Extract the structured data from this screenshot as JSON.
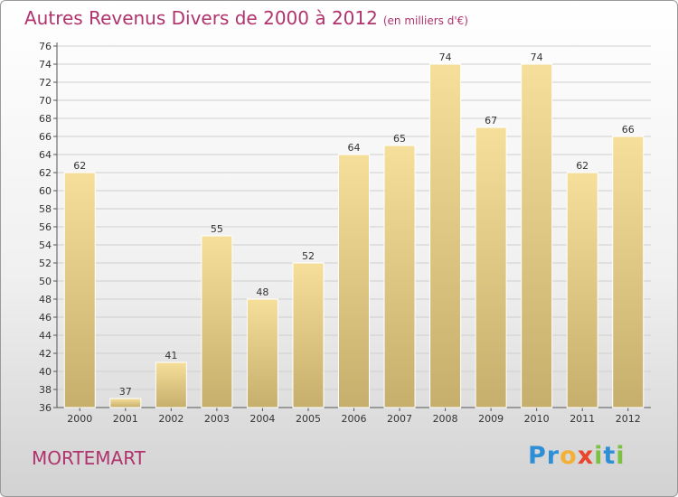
{
  "header": {
    "title": "Autres Revenus Divers de 2000 à 2012",
    "unit": "(en milliers d'€)"
  },
  "footer": {
    "town": "MORTEMART",
    "logo_letters": [
      "P",
      "r",
      "o",
      "x",
      "i",
      "t",
      "i"
    ],
    "logo_colors": [
      "#2f8fd6",
      "#2f8fd6",
      "#f2b134",
      "#e8472e",
      "#7cc242",
      "#2f8fd6",
      "#7cc242"
    ]
  },
  "colors": {
    "title": "#b0336d",
    "bar_light": "#f5df9a",
    "bar_dark": "#c6ae6c",
    "grid": "#cfcfcf"
  },
  "chart_data": {
    "type": "bar",
    "title": "Autres Revenus Divers de 2000 à 2012",
    "xlabel": "",
    "ylabel": "",
    "categories": [
      "2000",
      "2001",
      "2002",
      "2003",
      "2004",
      "2005",
      "2006",
      "2007",
      "2008",
      "2009",
      "2010",
      "2011",
      "2012"
    ],
    "values": [
      62,
      37,
      41,
      55,
      48,
      52,
      64,
      65,
      74,
      67,
      74,
      62,
      66
    ],
    "ylim": [
      36,
      76
    ],
    "ytick_step": 2,
    "grid": true,
    "legend": "none"
  }
}
